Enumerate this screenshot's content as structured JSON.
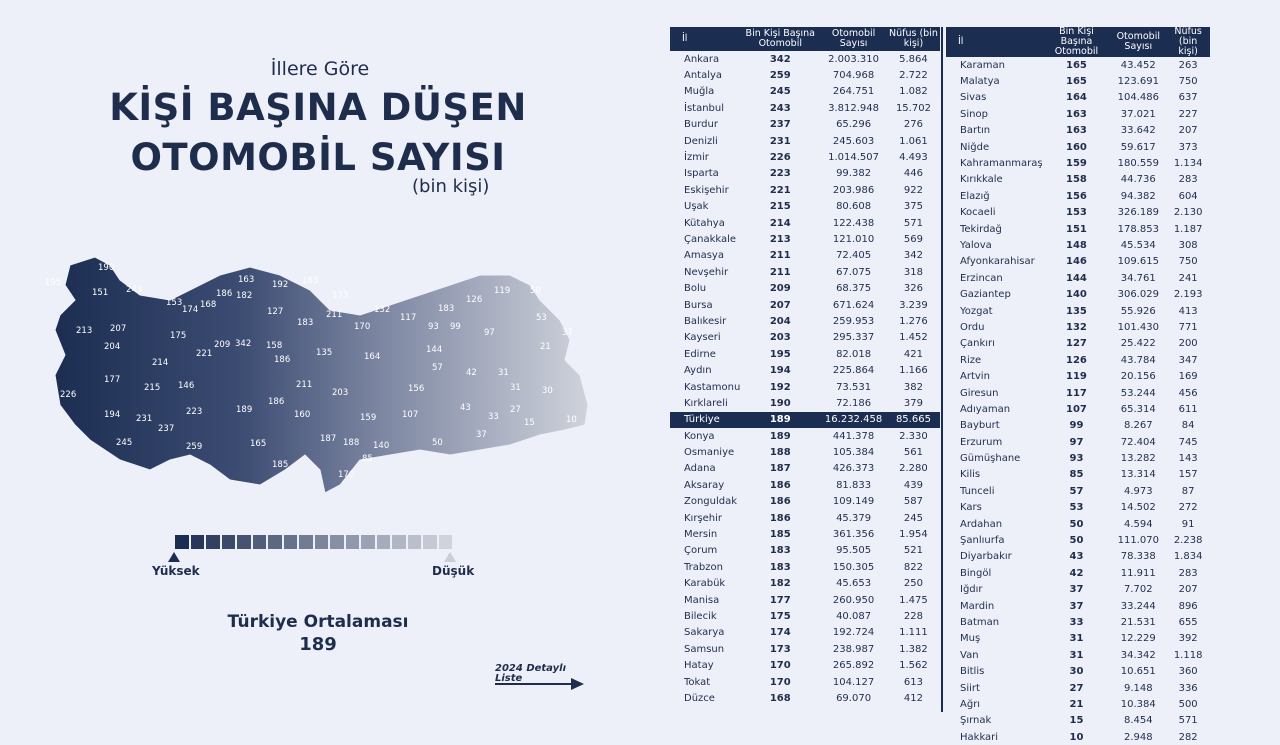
{
  "header": {
    "subtitle": "İllere Göre",
    "title_line1": "KİŞİ BAŞINA DÜŞEN",
    "title_line2": "OTOMOBİL SAYISI",
    "unit": "(bin kişi)"
  },
  "legend": {
    "high_label": "Yüksek",
    "low_label": "Düşük"
  },
  "average": {
    "label": "Türkiye Ortalaması",
    "value": "189"
  },
  "detail_link": {
    "line1": "2024 Detaylı",
    "line2": "Liste"
  },
  "table_headers": {
    "il": "İl",
    "per_thousand": "Bin Kişi Başına Otomobil",
    "cars": "Otomobil Sayısı",
    "population": "Nüfus (bin kişi)"
  },
  "colors": {
    "dark": "#1c2d52",
    "light": "#c9cdd6",
    "background": "#eef0f9"
  },
  "map_labels": [
    "190",
    "195",
    "151",
    "243",
    "153",
    "174",
    "168",
    "186",
    "182",
    "163",
    "192",
    "163",
    "173",
    "213",
    "207",
    "175",
    "209",
    "127",
    "183",
    "211",
    "170",
    "132",
    "117",
    "183",
    "126",
    "119",
    "50",
    "53",
    "37",
    "204",
    "221",
    "342",
    "158",
    "135",
    "164",
    "93",
    "99",
    "97",
    "21",
    "214",
    "144",
    "57",
    "42",
    "31",
    "177",
    "215",
    "146",
    "186",
    "211",
    "203",
    "156",
    "31",
    "30",
    "226",
    "194",
    "231",
    "189",
    "186",
    "160",
    "107",
    "43",
    "33",
    "27",
    "15",
    "237",
    "223",
    "159",
    "10",
    "245",
    "259",
    "165",
    "187",
    "188",
    "140",
    "37",
    "50",
    "185",
    "85",
    "170"
  ],
  "chart_data": {
    "type": "table",
    "title": "İllere Göre Kişi Başına Düşen Otomobil Sayısı (bin kişi)",
    "columns": [
      "İl",
      "Bin Kişi Başına Otomobil",
      "Otomobil Sayısı",
      "Nüfus (bin kişi)"
    ],
    "left_rows": [
      [
        "Ankara",
        "342",
        "2.003.310",
        "5.864"
      ],
      [
        "Antalya",
        "259",
        "704.968",
        "2.722"
      ],
      [
        "Muğla",
        "245",
        "264.751",
        "1.082"
      ],
      [
        "İstanbul",
        "243",
        "3.812.948",
        "15.702"
      ],
      [
        "Burdur",
        "237",
        "65.296",
        "276"
      ],
      [
        "Denizli",
        "231",
        "245.603",
        "1.061"
      ],
      [
        "İzmir",
        "226",
        "1.014.507",
        "4.493"
      ],
      [
        "Isparta",
        "223",
        "99.382",
        "446"
      ],
      [
        "Eskişehir",
        "221",
        "203.986",
        "922"
      ],
      [
        "Uşak",
        "215",
        "80.608",
        "375"
      ],
      [
        "Kütahya",
        "214",
        "122.438",
        "571"
      ],
      [
        "Çanakkale",
        "213",
        "121.010",
        "569"
      ],
      [
        "Amasya",
        "211",
        "72.405",
        "342"
      ],
      [
        "Nevşehir",
        "211",
        "67.075",
        "318"
      ],
      [
        "Bolu",
        "209",
        "68.375",
        "326"
      ],
      [
        "Bursa",
        "207",
        "671.624",
        "3.239"
      ],
      [
        "Balıkesir",
        "204",
        "259.953",
        "1.276"
      ],
      [
        "Kayseri",
        "203",
        "295.337",
        "1.452"
      ],
      [
        "Edirne",
        "195",
        "82.018",
        "421"
      ],
      [
        "Aydın",
        "194",
        "225.864",
        "1.166"
      ],
      [
        "Kastamonu",
        "192",
        "73.531",
        "382"
      ],
      [
        "Kırklareli",
        "190",
        "72.186",
        "379"
      ],
      [
        "Türkiye",
        "189",
        "16.232.458",
        "85.665"
      ],
      [
        "Konya",
        "189",
        "441.378",
        "2.330"
      ],
      [
        "Osmaniye",
        "188",
        "105.384",
        "561"
      ],
      [
        "Adana",
        "187",
        "426.373",
        "2.280"
      ],
      [
        "Aksaray",
        "186",
        "81.833",
        "439"
      ],
      [
        "Zonguldak",
        "186",
        "109.149",
        "587"
      ],
      [
        "Kırşehir",
        "186",
        "45.379",
        "245"
      ],
      [
        "Mersin",
        "185",
        "361.356",
        "1.954"
      ],
      [
        "Çorum",
        "183",
        "95.505",
        "521"
      ],
      [
        "Trabzon",
        "183",
        "150.305",
        "822"
      ],
      [
        "Karabük",
        "182",
        "45.653",
        "250"
      ],
      [
        "Manisa",
        "177",
        "260.950",
        "1.475"
      ],
      [
        "Bilecik",
        "175",
        "40.087",
        "228"
      ],
      [
        "Sakarya",
        "174",
        "192.724",
        "1.111"
      ],
      [
        "Samsun",
        "173",
        "238.987",
        "1.382"
      ],
      [
        "Hatay",
        "170",
        "265.892",
        "1.562"
      ],
      [
        "Tokat",
        "170",
        "104.127",
        "613"
      ],
      [
        "Düzce",
        "168",
        "69.070",
        "412"
      ]
    ],
    "right_rows": [
      [
        "Karaman",
        "165",
        "43.452",
        "263"
      ],
      [
        "Malatya",
        "165",
        "123.691",
        "750"
      ],
      [
        "Sivas",
        "164",
        "104.486",
        "637"
      ],
      [
        "Sinop",
        "163",
        "37.021",
        "227"
      ],
      [
        "Bartın",
        "163",
        "33.642",
        "207"
      ],
      [
        "Niğde",
        "160",
        "59.617",
        "373"
      ],
      [
        "Kahramanmaraş",
        "159",
        "180.559",
        "1.134"
      ],
      [
        "Kırıkkale",
        "158",
        "44.736",
        "283"
      ],
      [
        "Elazığ",
        "156",
        "94.382",
        "604"
      ],
      [
        "Kocaeli",
        "153",
        "326.189",
        "2.130"
      ],
      [
        "Tekirdağ",
        "151",
        "178.853",
        "1.187"
      ],
      [
        "Yalova",
        "148",
        "45.534",
        "308"
      ],
      [
        "Afyonkarahisar",
        "146",
        "109.615",
        "750"
      ],
      [
        "Erzincan",
        "144",
        "34.761",
        "241"
      ],
      [
        "Gaziantep",
        "140",
        "306.029",
        "2.193"
      ],
      [
        "Yozgat",
        "135",
        "55.926",
        "413"
      ],
      [
        "Ordu",
        "132",
        "101.430",
        "771"
      ],
      [
        "Çankırı",
        "127",
        "25.422",
        "200"
      ],
      [
        "Rize",
        "126",
        "43.784",
        "347"
      ],
      [
        "Artvin",
        "119",
        "20.156",
        "169"
      ],
      [
        "Giresun",
        "117",
        "53.244",
        "456"
      ],
      [
        "Adıyaman",
        "107",
        "65.314",
        "611"
      ],
      [
        "Bayburt",
        "99",
        "8.267",
        "84"
      ],
      [
        "Erzurum",
        "97",
        "72.404",
        "745"
      ],
      [
        "Gümüşhane",
        "93",
        "13.282",
        "143"
      ],
      [
        "Kilis",
        "85",
        "13.314",
        "157"
      ],
      [
        "Tunceli",
        "57",
        "4.973",
        "87"
      ],
      [
        "Kars",
        "53",
        "14.502",
        "272"
      ],
      [
        "Ardahan",
        "50",
        "4.594",
        "91"
      ],
      [
        "Şanlıurfa",
        "50",
        "111.070",
        "2.238"
      ],
      [
        "Diyarbakır",
        "43",
        "78.338",
        "1.834"
      ],
      [
        "Bingöl",
        "42",
        "11.911",
        "283"
      ],
      [
        "Iğdır",
        "37",
        "7.702",
        "207"
      ],
      [
        "Mardin",
        "37",
        "33.244",
        "896"
      ],
      [
        "Batman",
        "33",
        "21.531",
        "655"
      ],
      [
        "Muş",
        "31",
        "12.229",
        "392"
      ],
      [
        "Van",
        "31",
        "34.342",
        "1.118"
      ],
      [
        "Bitlis",
        "30",
        "10.651",
        "360"
      ],
      [
        "Siirt",
        "27",
        "9.148",
        "336"
      ],
      [
        "Ağrı",
        "21",
        "10.384",
        "500"
      ],
      [
        "Şırnak",
        "15",
        "8.454",
        "571"
      ],
      [
        "Hakkari",
        "10",
        "2.948",
        "282"
      ]
    ],
    "highlight_row": "Türkiye"
  }
}
